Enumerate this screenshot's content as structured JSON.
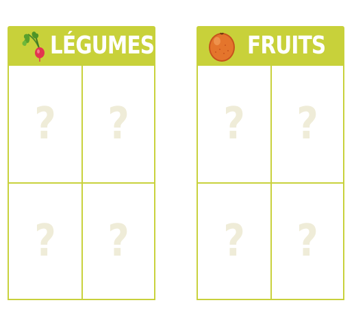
{
  "categories": [
    {
      "title": "LÉGUMES",
      "icon": "radish-icon",
      "slots": [
        "?",
        "?",
        "?",
        "?"
      ]
    },
    {
      "title": "FRUITS",
      "icon": "orange-icon",
      "slots": [
        "?",
        "?",
        "?",
        "?"
      ]
    }
  ],
  "colors": {
    "accent": "#c8d13a",
    "placeholder": "#efecd8",
    "title": "#ffffff"
  }
}
